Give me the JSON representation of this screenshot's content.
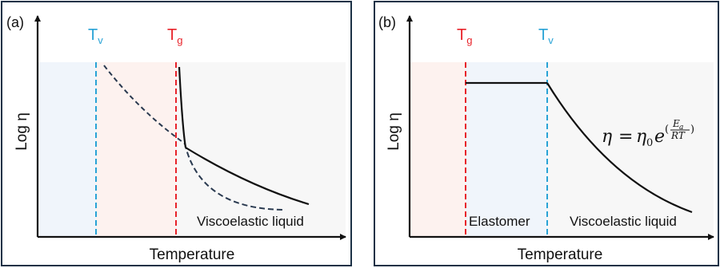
{
  "panels": [
    {
      "label": "(a)",
      "y_axis": "Log η",
      "x_axis": "Temperature",
      "markers": [
        {
          "symbol": "T",
          "sub": "v",
          "color": "#29a3d6"
        },
        {
          "symbol": "T",
          "sub": "g",
          "color": "#e8232a"
        }
      ],
      "region_label": "Viscoelastic liquid"
    },
    {
      "label": "(b)",
      "y_axis": "Log η",
      "x_axis": "Temperature",
      "markers": [
        {
          "symbol": "T",
          "sub": "g",
          "color": "#e8232a"
        },
        {
          "symbol": "T",
          "sub": "v",
          "color": "#29a3d6"
        }
      ],
      "region_labels": [
        "Elastomer",
        "Viscoelastic liquid"
      ],
      "equation": {
        "lhs": "η",
        "eq": "=",
        "base": "η",
        "base_sub": "0",
        "e": "e",
        "exp_num": "E",
        "exp_num_sub": "a",
        "exp_den": "RT"
      }
    }
  ],
  "colors": {
    "blue_region": "#f0f5fb",
    "red_region": "#fdf2ef",
    "gray_region": "#f7f7f7",
    "curve": "#111111",
    "dashed_curve": "#2a3a50"
  }
}
